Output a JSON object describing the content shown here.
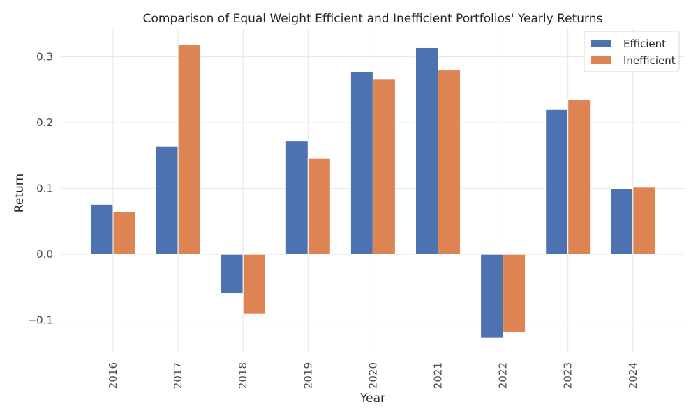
{
  "chart_data": {
    "type": "bar",
    "title": "Comparison of Equal Weight Efficient and Inefficient Portfolios' Yearly Returns",
    "xlabel": "Year",
    "ylabel": "Return",
    "categories": [
      "2016",
      "2017",
      "2018",
      "2019",
      "2020",
      "2021",
      "2022",
      "2023",
      "2024"
    ],
    "series": [
      {
        "name": "Efficient",
        "color": "#4c72b0",
        "values": [
          0.076,
          0.164,
          -0.059,
          0.172,
          0.277,
          0.314,
          -0.127,
          0.22,
          0.1
        ]
      },
      {
        "name": "Inefficient",
        "color": "#dd8452",
        "values": [
          0.065,
          0.319,
          -0.09,
          0.146,
          0.266,
          0.28,
          -0.118,
          0.235,
          0.102
        ]
      }
    ],
    "ylim": [
      -0.148,
      0.342
    ],
    "yticks": [
      -0.1,
      0.0,
      0.1,
      0.2,
      0.3
    ],
    "ytick_labels": [
      "−0.1",
      "0.0",
      "0.1",
      "0.2",
      "0.3"
    ],
    "grid": true,
    "legend_position": "top-right"
  }
}
